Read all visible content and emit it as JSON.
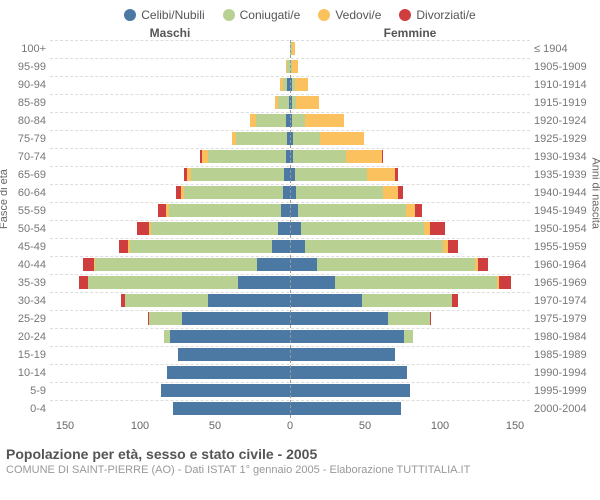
{
  "legend": [
    {
      "label": "Celibi/Nubili",
      "color": "#4b79a4"
    },
    {
      "label": "Coniugati/e",
      "color": "#b8d192"
    },
    {
      "label": "Vedovi/e",
      "color": "#fbc15e"
    },
    {
      "label": "Divorziati/e",
      "color": "#cf3e3e"
    }
  ],
  "headers": {
    "male": "Maschi",
    "female": "Femmine"
  },
  "y_left_label": "Fasce di età",
  "y_right_label": "Anni di nascita",
  "chart": {
    "x_max": 160,
    "x_ticks": [
      0,
      50,
      100,
      150
    ],
    "age_labels": [
      "100+",
      "95-99",
      "90-94",
      "85-89",
      "80-84",
      "75-79",
      "70-74",
      "65-69",
      "60-64",
      "55-59",
      "50-54",
      "45-49",
      "40-44",
      "35-39",
      "30-34",
      "25-29",
      "20-24",
      "15-19",
      "10-14",
      "5-9",
      "0-4"
    ],
    "year_labels": [
      "≤ 1904",
      "1905-1909",
      "1910-1914",
      "1915-1919",
      "1920-1924",
      "1925-1929",
      "1930-1934",
      "1935-1939",
      "1940-1944",
      "1945-1949",
      "1950-1954",
      "1955-1959",
      "1960-1964",
      "1965-1969",
      "1970-1974",
      "1975-1979",
      "1980-1984",
      "1985-1989",
      "1990-1994",
      "1995-1999",
      "2000-2004"
    ],
    "rows": [
      {
        "m": [
          0,
          0,
          0,
          0
        ],
        "f": [
          0,
          1,
          2,
          0
        ]
      },
      {
        "m": [
          0,
          2,
          1,
          0
        ],
        "f": [
          0,
          1,
          4,
          0
        ]
      },
      {
        "m": [
          2,
          3,
          2,
          0
        ],
        "f": [
          1,
          2,
          9,
          0
        ]
      },
      {
        "m": [
          1,
          7,
          2,
          0
        ],
        "f": [
          1,
          3,
          15,
          0
        ]
      },
      {
        "m": [
          3,
          20,
          4,
          0
        ],
        "f": [
          1,
          9,
          26,
          0
        ]
      },
      {
        "m": [
          2,
          34,
          3,
          0
        ],
        "f": [
          2,
          18,
          29,
          0
        ]
      },
      {
        "m": [
          3,
          52,
          4,
          1
        ],
        "f": [
          2,
          35,
          24,
          1
        ]
      },
      {
        "m": [
          4,
          62,
          3,
          2
        ],
        "f": [
          3,
          48,
          19,
          2
        ]
      },
      {
        "m": [
          5,
          66,
          2,
          3
        ],
        "f": [
          4,
          58,
          10,
          3
        ]
      },
      {
        "m": [
          6,
          75,
          2,
          5
        ],
        "f": [
          5,
          72,
          6,
          5
        ]
      },
      {
        "m": [
          8,
          85,
          1,
          8
        ],
        "f": [
          7,
          82,
          4,
          10
        ]
      },
      {
        "m": [
          12,
          95,
          1,
          6
        ],
        "f": [
          10,
          92,
          3,
          7
        ]
      },
      {
        "m": [
          22,
          108,
          1,
          7
        ],
        "f": [
          18,
          105,
          2,
          7
        ]
      },
      {
        "m": [
          35,
          100,
          0,
          6
        ],
        "f": [
          30,
          108,
          1,
          8
        ]
      },
      {
        "m": [
          55,
          55,
          0,
          3
        ],
        "f": [
          48,
          60,
          0,
          4
        ]
      },
      {
        "m": [
          72,
          22,
          0,
          1
        ],
        "f": [
          65,
          28,
          0,
          1
        ]
      },
      {
        "m": [
          80,
          4,
          0,
          0
        ],
        "f": [
          76,
          6,
          0,
          0
        ]
      },
      {
        "m": [
          75,
          0,
          0,
          0
        ],
        "f": [
          70,
          0,
          0,
          0
        ]
      },
      {
        "m": [
          82,
          0,
          0,
          0
        ],
        "f": [
          78,
          0,
          0,
          0
        ]
      },
      {
        "m": [
          86,
          0,
          0,
          0
        ],
        "f": [
          80,
          0,
          0,
          0
        ]
      },
      {
        "m": [
          78,
          0,
          0,
          0
        ],
        "f": [
          74,
          0,
          0,
          0
        ]
      }
    ]
  },
  "footer": {
    "title": "Popolazione per età, sesso e stato civile - 2005",
    "sub": "COMUNE DI SAINT-PIERRE (AO) - Dati ISTAT 1° gennaio 2005 - Elaborazione TUTTITALIA.IT"
  }
}
